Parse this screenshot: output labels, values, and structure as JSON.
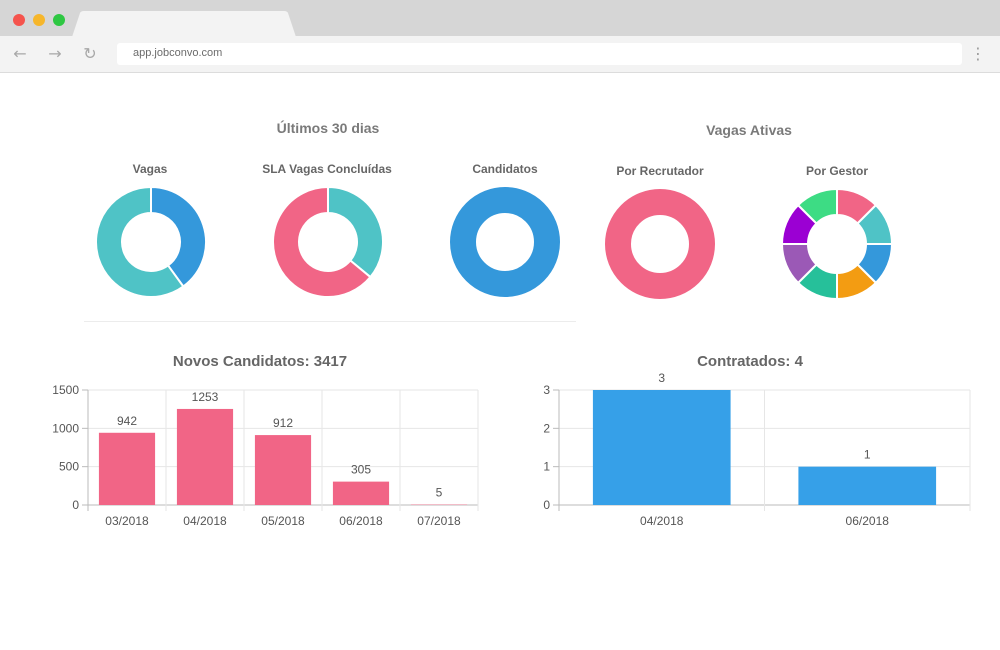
{
  "browser": {
    "address": "app.jobconvo.com",
    "nav_back_icon": "←",
    "nav_forward_icon": "→",
    "reload_icon": "↻",
    "menu_icon": "⋮"
  },
  "sections": {
    "last30": "Últimos 30 dias",
    "active": "Vagas Ativas"
  },
  "donuts": [
    {
      "label": "Vagas",
      "segments": [
        {
          "value": 0.4,
          "color": "#3498db"
        },
        {
          "value": 0.6,
          "color": "#4fc3c6"
        }
      ]
    },
    {
      "label": "SLA Vagas Concluídas",
      "segments": [
        {
          "value": 0.36,
          "color": "#4fc3c6"
        },
        {
          "value": 0.64,
          "color": "#f16586"
        }
      ]
    },
    {
      "label": "Candidatos",
      "segments": [
        {
          "value": 1.0,
          "color": "#3498db"
        }
      ]
    },
    {
      "label": "Por Recrutador",
      "segments": [
        {
          "value": 1.0,
          "color": "#f16586"
        }
      ]
    },
    {
      "label": "Por Gestor",
      "segments": [
        {
          "value": 1,
          "color": "#f16586"
        },
        {
          "value": 1,
          "color": "#4fc3c6"
        },
        {
          "value": 1,
          "color": "#3498db"
        },
        {
          "value": 1,
          "color": "#f39c12"
        },
        {
          "value": 1,
          "color": "#26c09a"
        },
        {
          "value": 1,
          "color": "#9b59b6"
        },
        {
          "value": 1,
          "color": "#9b00d3"
        },
        {
          "value": 1,
          "color": "#3ddc84"
        }
      ]
    }
  ],
  "chart_data": [
    {
      "type": "bar",
      "title": "Novos Candidatos: 3417",
      "categories": [
        "03/2018",
        "04/2018",
        "05/2018",
        "06/2018",
        "07/2018"
      ],
      "values": [
        942,
        1253,
        912,
        305,
        5
      ],
      "ylim": [
        0,
        1500
      ],
      "yticks": [
        "0",
        "500",
        "1000",
        "1500"
      ],
      "color": "#f16586",
      "grid": true
    },
    {
      "type": "bar",
      "title": "Contratados: 4",
      "categories": [
        "04/2018",
        "06/2018"
      ],
      "values": [
        3,
        1
      ],
      "ylim": [
        0,
        3
      ],
      "yticks": [
        "0",
        "1",
        "2",
        "3"
      ],
      "color": "#36a0e8",
      "grid": true
    }
  ]
}
